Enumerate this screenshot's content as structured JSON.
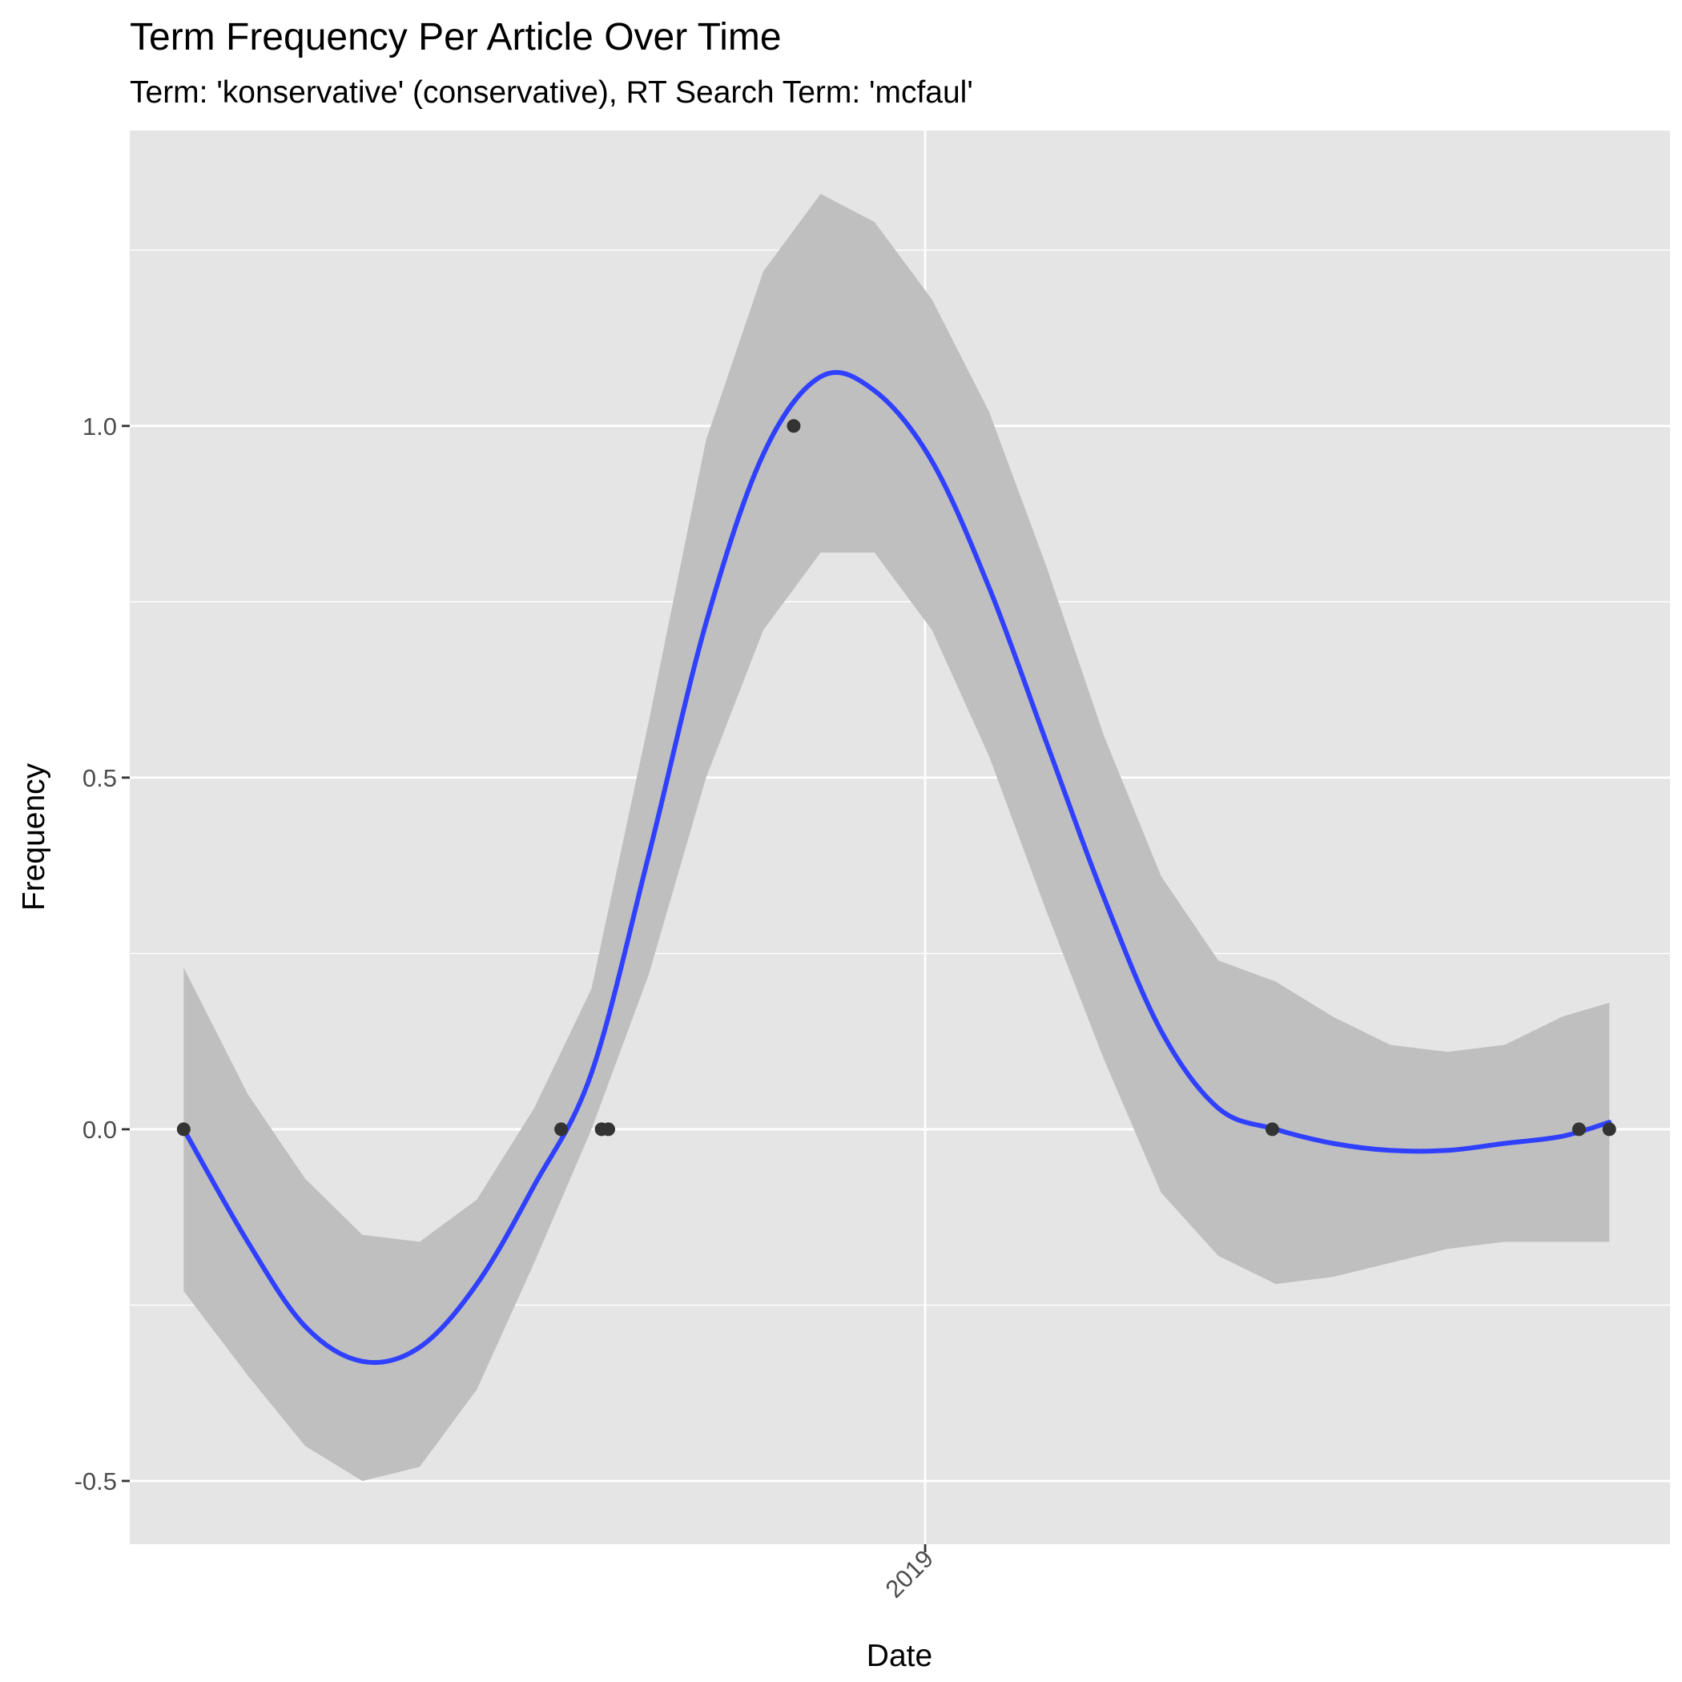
{
  "chart_data": {
    "type": "line",
    "title": "Term Frequency Per Article Over Time",
    "subtitle": "Term: 'konservative' (conservative), RT Search Term: 'mcfaul'",
    "xlabel": "Date",
    "ylabel": "Frequency",
    "x_axis": {
      "type": "date",
      "range": [
        "2018-05-10",
        "2019-08-10"
      ],
      "ticks": [
        {
          "value": "2019-01-01",
          "label": "2019"
        }
      ],
      "minor_ticks": []
    },
    "y_axis": {
      "range": [
        -0.59,
        1.42
      ],
      "ticks": [
        {
          "value": -0.5,
          "label": "-0.5"
        },
        {
          "value": 0.0,
          "label": "0.0"
        },
        {
          "value": 0.5,
          "label": "0.5"
        },
        {
          "value": 1.0,
          "label": "1.0"
        }
      ],
      "minor_ticks": [
        -0.25,
        0.25,
        0.75,
        1.25
      ]
    },
    "grid": true,
    "colors": {
      "panel": "#e5e5e5",
      "grid": "#ffffff",
      "band": "#bfbfbf",
      "line": "#3040ff",
      "point": "#333333",
      "tick": "#333333"
    },
    "points": [
      {
        "x": "2018-05-26",
        "y": 0
      },
      {
        "x": "2018-09-15",
        "y": 0
      },
      {
        "x": "2018-09-27",
        "y": 0
      },
      {
        "x": "2018-09-29",
        "y": 0
      },
      {
        "x": "2018-11-23",
        "y": 1
      },
      {
        "x": "2019-04-14",
        "y": 0
      },
      {
        "x": "2019-07-14",
        "y": 0
      },
      {
        "x": "2019-07-23",
        "y": 0
      }
    ],
    "smooth": {
      "x": [
        "2018-05-26",
        "2018-06-14",
        "2018-07-01",
        "2018-07-18",
        "2018-08-04",
        "2018-08-21",
        "2018-09-07",
        "2018-09-24",
        "2018-10-11",
        "2018-10-28",
        "2018-11-14",
        "2018-12-01",
        "2018-12-17",
        "2019-01-03",
        "2019-01-20",
        "2019-02-06",
        "2019-02-23",
        "2019-03-12",
        "2019-03-29",
        "2019-04-15",
        "2019-05-02",
        "2019-05-19",
        "2019-06-05",
        "2019-06-22",
        "2019-07-09",
        "2019-07-23"
      ],
      "y": [
        0.0,
        -0.16,
        -0.28,
        -0.33,
        -0.31,
        -0.22,
        -0.08,
        0.08,
        0.39,
        0.72,
        0.96,
        1.07,
        1.05,
        0.95,
        0.77,
        0.55,
        0.33,
        0.14,
        0.03,
        0.0,
        -0.02,
        -0.03,
        -0.03,
        -0.02,
        -0.01,
        0.01
      ],
      "upper": [
        0.23,
        0.05,
        -0.07,
        -0.15,
        -0.16,
        -0.1,
        0.03,
        0.2,
        0.58,
        0.98,
        1.22,
        1.33,
        1.29,
        1.18,
        1.02,
        0.8,
        0.56,
        0.36,
        0.24,
        0.21,
        0.16,
        0.12,
        0.11,
        0.12,
        0.16,
        0.18
      ],
      "lower": [
        -0.23,
        -0.35,
        -0.45,
        -0.5,
        -0.48,
        -0.37,
        -0.19,
        0.0,
        0.22,
        0.5,
        0.71,
        0.82,
        0.82,
        0.71,
        0.53,
        0.31,
        0.1,
        -0.09,
        -0.18,
        -0.22,
        -0.21,
        -0.19,
        -0.17,
        -0.16,
        -0.16,
        -0.16
      ]
    }
  }
}
